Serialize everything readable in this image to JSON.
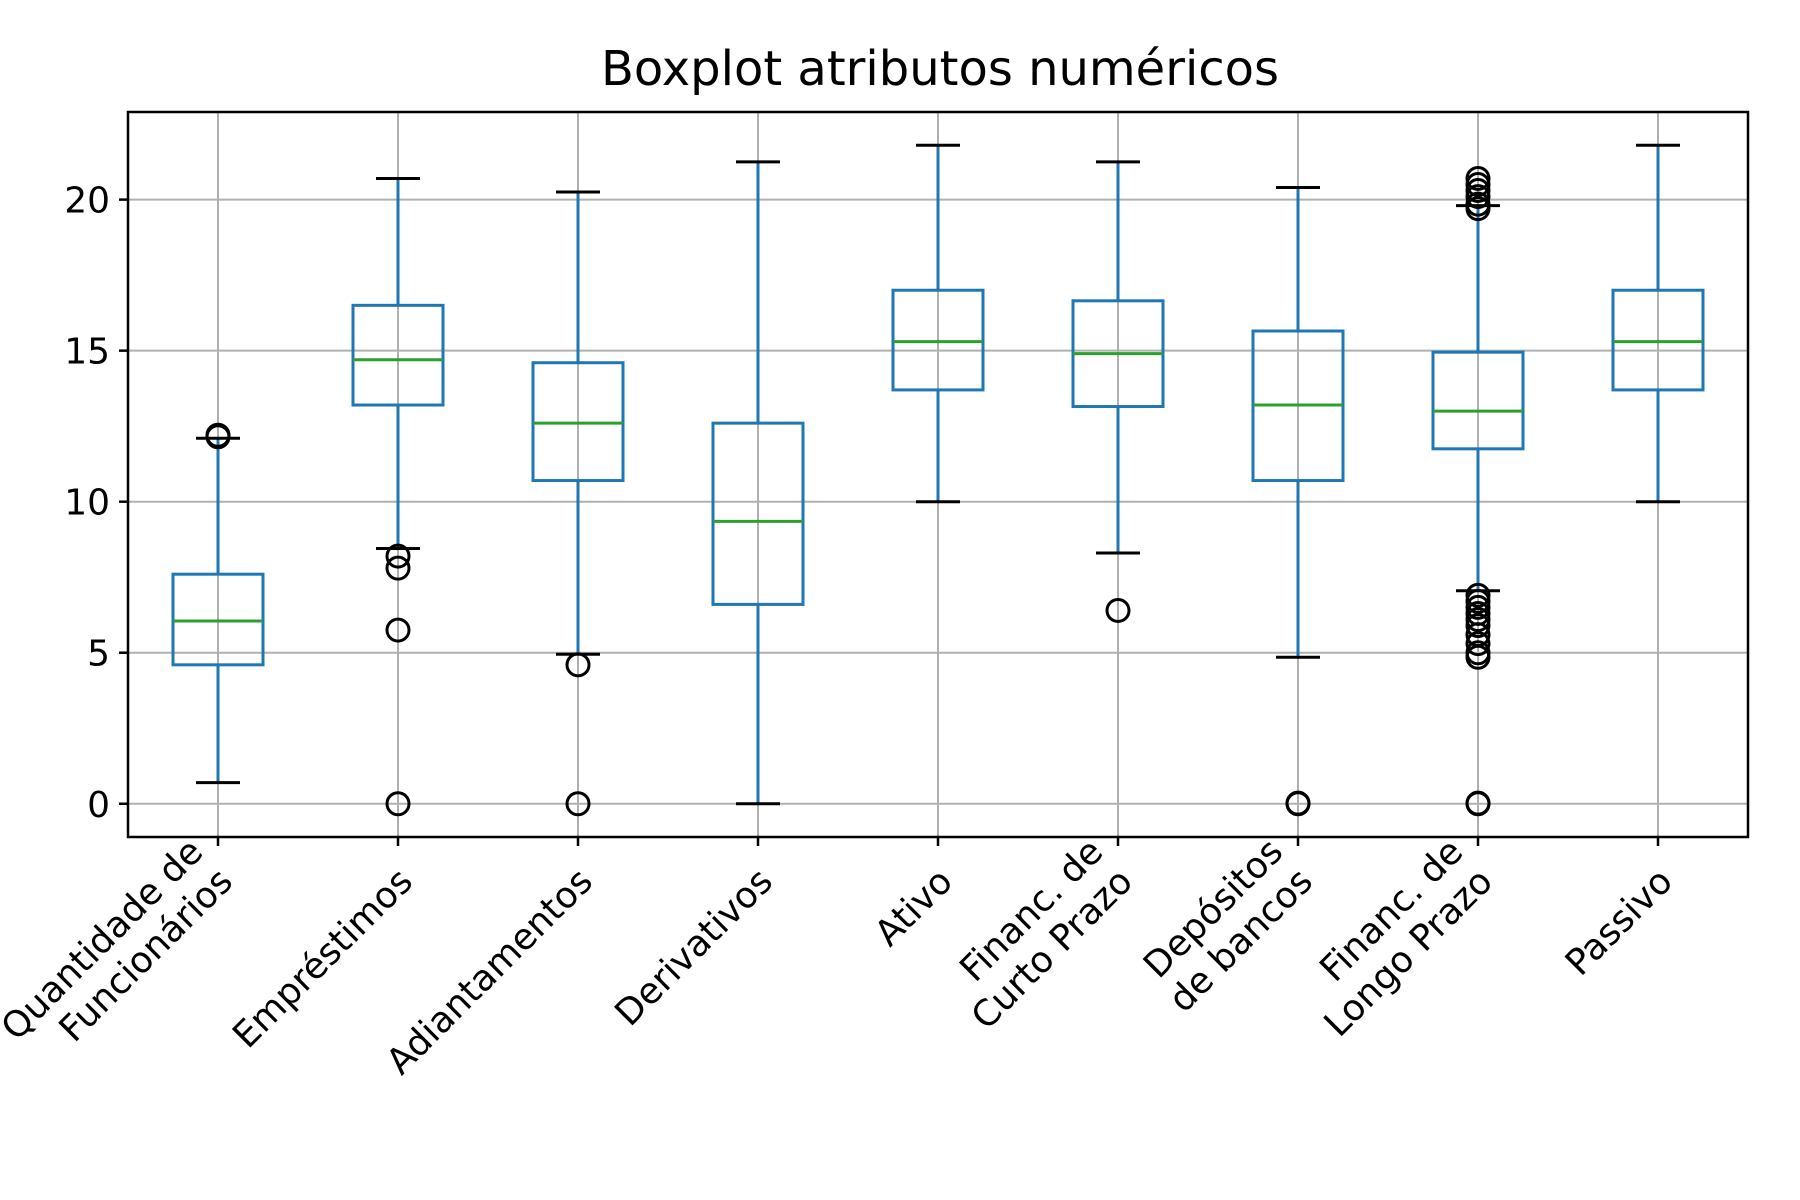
{
  "chart_data": {
    "type": "boxplot",
    "title": "Boxplot atributos numéricos",
    "ylim": [
      -1.1,
      22.9
    ],
    "yticks": [
      0,
      5,
      10,
      15,
      20
    ],
    "grid": true,
    "colors": {
      "box": "#1f77b4",
      "median": "#2ca02c",
      "cap": "#000000",
      "flier": "#000000",
      "grid": "#b0b0b0"
    },
    "series": [
      {
        "name": "Quantidade de Funcionários",
        "label_lines": [
          "Quantidade de",
          "Funcionários"
        ],
        "whisker_low": 0.7,
        "q1": 4.6,
        "median": 6.05,
        "q3": 7.6,
        "whisker_high": 12.1,
        "fliers": [
          12.15,
          12.2
        ]
      },
      {
        "name": "Empréstimos",
        "label_lines": [
          "Empréstimos"
        ],
        "whisker_low": 8.45,
        "q1": 13.2,
        "median": 14.7,
        "q3": 16.5,
        "whisker_high": 20.7,
        "fliers": [
          8.2,
          7.8,
          5.75,
          0.0
        ]
      },
      {
        "name": "Adiantamentos",
        "label_lines": [
          "Adiantamentos"
        ],
        "whisker_low": 4.95,
        "q1": 10.7,
        "median": 12.6,
        "q3": 14.6,
        "whisker_high": 20.25,
        "fliers": [
          4.6,
          0.0
        ]
      },
      {
        "name": "Derivativos",
        "label_lines": [
          "Derivativos"
        ],
        "whisker_low": 0.0,
        "q1": 6.6,
        "median": 9.35,
        "q3": 12.6,
        "whisker_high": 21.25,
        "fliers": []
      },
      {
        "name": "Ativo",
        "label_lines": [
          "Ativo"
        ],
        "whisker_low": 10.0,
        "q1": 13.7,
        "median": 15.3,
        "q3": 17.0,
        "whisker_high": 21.8,
        "fliers": []
      },
      {
        "name": "Financ. de Curto Prazo",
        "label_lines": [
          "Financ. de",
          "Curto Prazo"
        ],
        "whisker_low": 8.3,
        "q1": 13.15,
        "median": 14.9,
        "q3": 16.65,
        "whisker_high": 21.25,
        "fliers": [
          6.4
        ]
      },
      {
        "name": "Depósitos de bancos",
        "label_lines": [
          "Depósitos",
          "de bancos"
        ],
        "whisker_low": 4.85,
        "q1": 10.7,
        "median": 13.2,
        "q3": 15.65,
        "whisker_high": 20.4,
        "fliers": [
          0.0,
          0.02
        ]
      },
      {
        "name": "Financ. de Longo Prazo",
        "label_lines": [
          "Financ. de",
          "Longo Prazo"
        ],
        "whisker_low": 7.05,
        "q1": 11.75,
        "median": 13.0,
        "q3": 14.95,
        "whisker_high": 19.8,
        "fliers": [
          19.7,
          19.85,
          20.1,
          20.3,
          20.5,
          20.7,
          6.9,
          6.7,
          6.5,
          6.3,
          6.1,
          5.9,
          5.6,
          5.3,
          5.0,
          4.85,
          0.0,
          0.02
        ]
      },
      {
        "name": "Passivo",
        "label_lines": [
          "Passivo"
        ],
        "whisker_low": 10.0,
        "q1": 13.7,
        "median": 15.3,
        "q3": 17.0,
        "whisker_high": 21.8,
        "fliers": []
      }
    ]
  }
}
